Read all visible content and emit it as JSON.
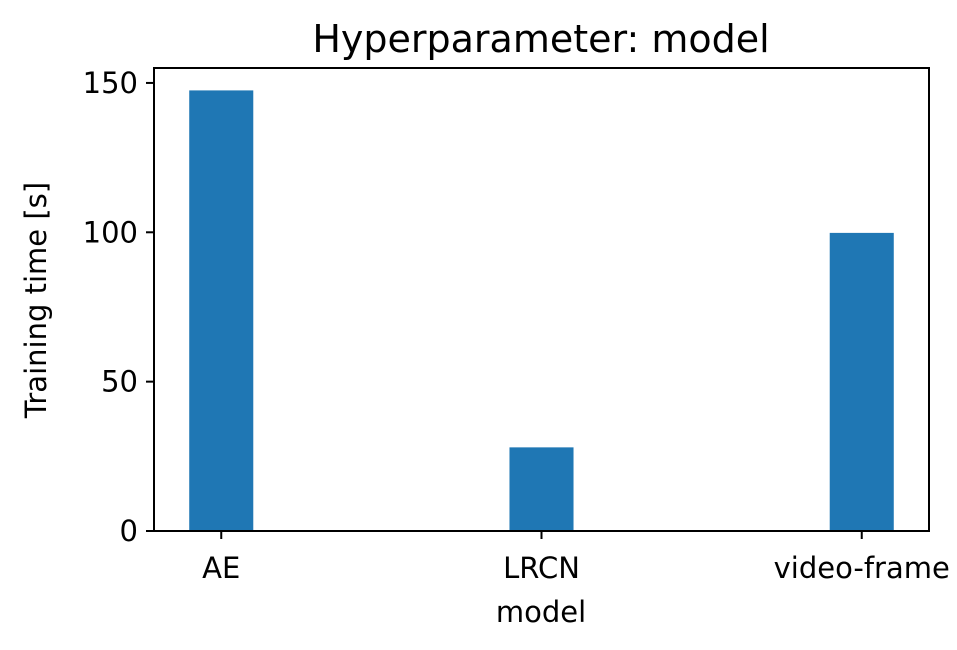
{
  "chart_data": {
    "type": "bar",
    "title": "Hyperparameter: model",
    "xlabel": "model",
    "ylabel": "Training time [s]",
    "categories": [
      "AE",
      "LRCN",
      "video-frame"
    ],
    "values": [
      147.5,
      28.0,
      99.8
    ],
    "ylim": [
      0,
      155
    ],
    "yticks": [
      0,
      50,
      100,
      150
    ],
    "bar_color": "#1f77b4",
    "grid": false,
    "legend": "none"
  }
}
